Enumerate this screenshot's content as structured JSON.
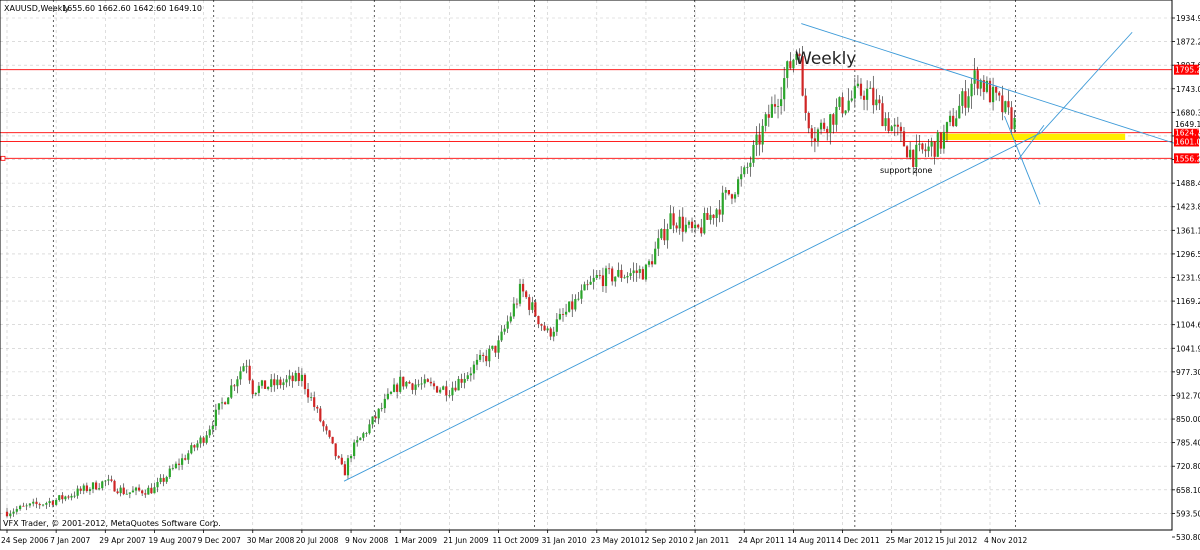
{
  "header": {
    "symbol": "XAUUSD,Weekly",
    "ohlc": "1655.60 1662.60 1642.60 1649.10"
  },
  "watermark": "VFX Trader, © 2001-2012, MetaQuotes Software Corp.",
  "annotations": {
    "weekly": "Weekly",
    "support_zone": "support zone"
  },
  "colors": {
    "bull": "#2ba52b",
    "bear": "#d02525",
    "trend": "#3c9ad8",
    "hline": "#ff0000",
    "support": "#ffee00",
    "grid": "#c8c8c8"
  },
  "chart_data": {
    "type": "candlestick",
    "instrument": "XAUUSD",
    "timeframe": "Weekly",
    "last": {
      "open": 1655.6,
      "high": 1662.6,
      "low": 1642.6,
      "close": 1649.1
    },
    "y_ticks": [
      "1934.90",
      "1872.20",
      "1807.60",
      "1743.00",
      "1680.30",
      "1615.70",
      "1553.00",
      "1488.40",
      "1423.80",
      "1361.10",
      "1296.50",
      "1231.90",
      "1169.20",
      "1104.60",
      "1041.90",
      "977.30",
      "912.70",
      "850.00",
      "785.40",
      "720.80",
      "658.10",
      "593.50",
      "530.80"
    ],
    "ylim": [
      530.8,
      1934.9
    ],
    "x_ticks": [
      "24 Sep 2006",
      "7 Jan 2007",
      "29 Apr 2007",
      "19 Aug 2007",
      "9 Dec 2007",
      "30 Mar 2008",
      "20 Jul 2008",
      "9 Nov 2008",
      "1 Mar 2009",
      "21 Jun 2009",
      "11 Oct 2009",
      "31 Jan 2010",
      "23 May 2010",
      "12 Sep 2010",
      "2 Jan 2011",
      "24 Apr 2011",
      "14 Aug 2011",
      "4 Dec 2011",
      "25 Mar 2012",
      "15 Jul 2012",
      "4 Nov 2012"
    ],
    "horizontal_levels": [
      {
        "price": 1795.27,
        "label": "1795.27"
      },
      {
        "price": 1624.7,
        "label": "1624.70"
      },
      {
        "price": 1601.05,
        "label": "1601.05"
      },
      {
        "price": 1556.22,
        "label": "1556.22"
      }
    ],
    "current_price": {
      "price": 1649.1,
      "label": "1649.10"
    },
    "support_zone": {
      "from": 1605,
      "to": 1622,
      "start": "15 Jul 2012",
      "end": "8 Sep 2013"
    },
    "trendlines": [
      {
        "from": {
          "date": "24 Oct 2008",
          "price": 681
        },
        "to": {
          "date": "1 Mar 2013",
          "price": 1625
        }
      },
      {
        "from": {
          "date": "1 Sep 2011",
          "price": 1920
        },
        "to": {
          "date": "15 Jan 2014",
          "price": 1590
        }
      },
      {
        "from": {
          "date": "1 Mar 2013",
          "price": 1625
        },
        "to": {
          "date": "24 Sep 2013",
          "price": 1897
        }
      },
      {
        "from": {
          "date": "7 Dec 2012",
          "price": 1670
        },
        "to": {
          "date": "26 Feb 2013",
          "price": 1430
        }
      },
      {
        "from": {
          "date": "7 Jan 2013",
          "price": 1552
        },
        "to": {
          "date": "7 Mar 2013",
          "price": 1645
        }
      }
    ],
    "price_path": [
      [
        "24 Sep 2006",
        598
      ],
      [
        "7 Jan 2007",
        630
      ],
      [
        "29 Apr 2007",
        680
      ],
      [
        "15 Jun 2007",
        650
      ],
      [
        "19 Aug 2007",
        660
      ],
      [
        "9 Dec 2007",
        800
      ],
      [
        "15 Mar 2008",
        1010
      ],
      [
        "30 Mar 2008",
        930
      ],
      [
        "20 Jul 2008",
        960
      ],
      [
        "24 Oct 2008",
        700
      ],
      [
        "9 Nov 2008",
        760
      ],
      [
        "1 Mar 2009",
        950
      ],
      [
        "21 Jun 2009",
        930
      ],
      [
        "11 Oct 2009",
        1050
      ],
      [
        "1 Dec 2009",
        1200
      ],
      [
        "31 Jan 2010",
        1080
      ],
      [
        "23 May 2010",
        1230
      ],
      [
        "12 Sep 2010",
        1250
      ],
      [
        "9 Nov 2010",
        1400
      ],
      [
        "2 Jan 2011",
        1350
      ],
      [
        "24 Apr 2011",
        1510
      ],
      [
        "1 Sep 2011",
        1880
      ],
      [
        "14 Aug 2011",
        1770
      ],
      [
        "1 Oct 2011",
        1620
      ],
      [
        "4 Dec 2011",
        1700
      ],
      [
        "25 Jan 2012",
        1740
      ],
      [
        "25 Mar 2012",
        1640
      ],
      [
        "15 May 2012",
        1560
      ],
      [
        "15 Jul 2012",
        1600
      ],
      [
        "4 Oct 2012",
        1780
      ],
      [
        "4 Nov 2012",
        1730
      ],
      [
        "16 Dec 2012",
        1670
      ],
      [
        "30 Dec 2012",
        1649
      ]
    ]
  }
}
